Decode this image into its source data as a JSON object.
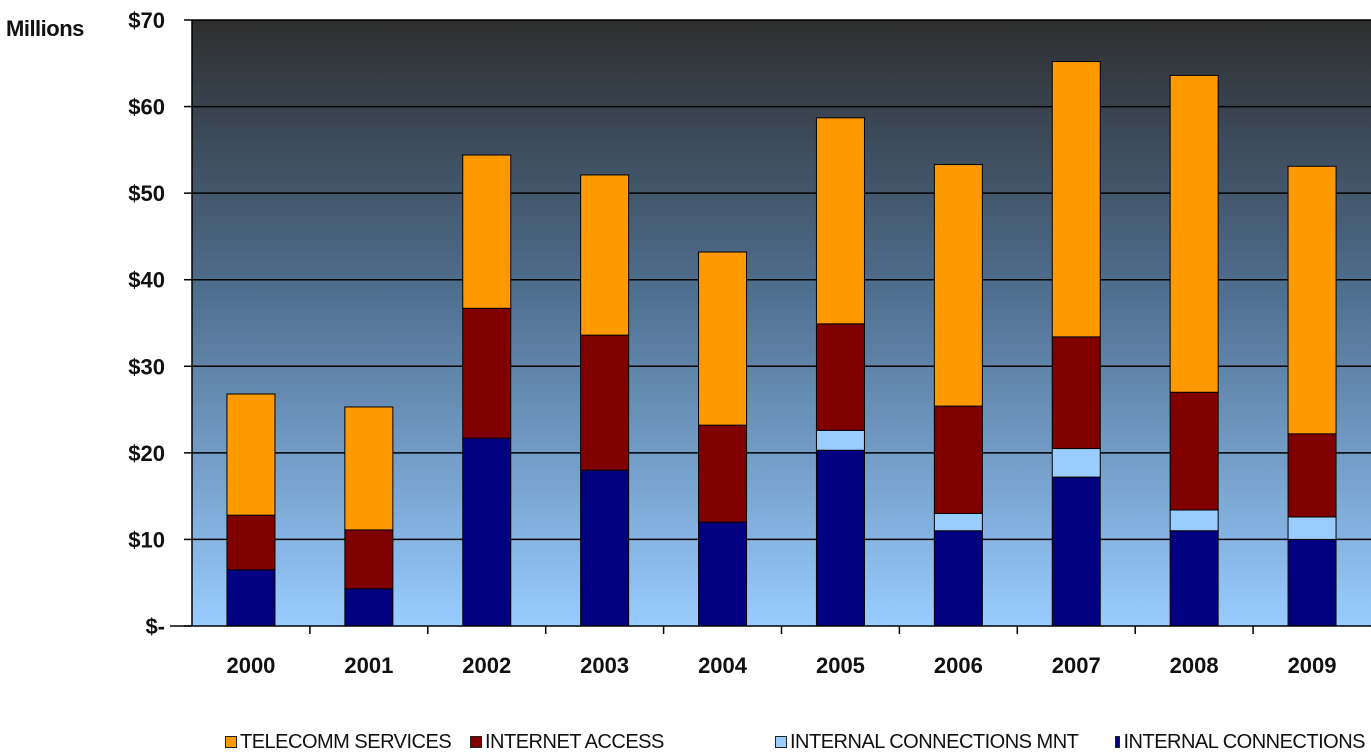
{
  "chart_data": {
    "type": "bar",
    "stacked": true,
    "title": "",
    "unit_label": "Millions",
    "xlabel": "",
    "ylabel": "",
    "categories": [
      "2000",
      "2001",
      "2002",
      "2003",
      "2004",
      "2005",
      "2006",
      "2007",
      "2008",
      "2009"
    ],
    "ylim": [
      0,
      70
    ],
    "yticks": [
      0,
      10,
      20,
      30,
      40,
      50,
      60,
      70
    ],
    "ytick_labels": [
      "$-",
      "$10",
      "$20",
      "$30",
      "$40",
      "$50",
      "$60",
      "$70"
    ],
    "grid": true,
    "legend_position": "bottom",
    "series": [
      {
        "name": "INTERNAL CONNECTIONS",
        "color": "#000080",
        "values": [
          6.5,
          4.3,
          21.7,
          18.0,
          12.0,
          20.3,
          11.0,
          17.2,
          11.0,
          10.0
        ]
      },
      {
        "name": "INTERNAL CONNECTIONS MNT",
        "color": "#99CCFF",
        "values": [
          0.0,
          0.0,
          0.0,
          0.0,
          0.0,
          2.3,
          2.0,
          3.3,
          2.4,
          2.6
        ]
      },
      {
        "name": "INTERNET ACCESS",
        "color": "#800000",
        "values": [
          6.3,
          6.8,
          15.0,
          15.6,
          11.2,
          12.3,
          12.4,
          12.9,
          13.6,
          9.6
        ]
      },
      {
        "name": "TELECOMM SERVICES",
        "color": "#FF9900",
        "values": [
          14.0,
          14.2,
          17.7,
          18.5,
          20.0,
          23.8,
          27.9,
          31.8,
          36.6,
          30.9
        ]
      }
    ],
    "legend_order": [
      "TELECOMM SERVICES",
      "INTERNET ACCESS",
      "INTERNAL CONNECTIONS MNT",
      "INTERNAL CONNECTIONS"
    ],
    "plot_background": {
      "top": "#2e2e2e",
      "bottom": "#99CCFF"
    }
  }
}
